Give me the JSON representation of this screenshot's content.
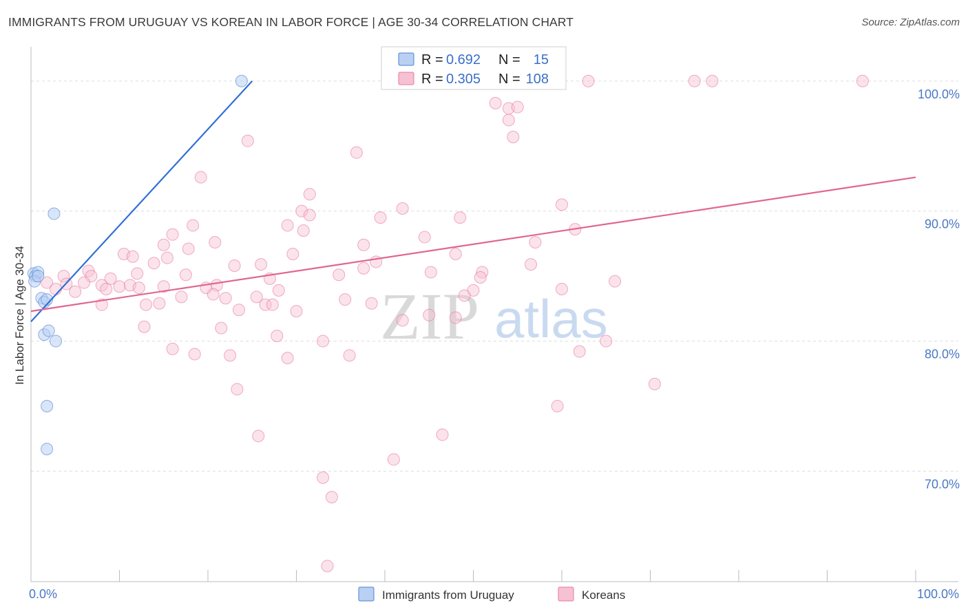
{
  "header": {
    "title": "IMMIGRANTS FROM URUGUAY VS KOREAN IN LABOR FORCE | AGE 30-34 CORRELATION CHART",
    "source": "Source: ZipAtlas.com"
  },
  "watermark": {
    "zip": "ZIP",
    "atlas": "atlas"
  },
  "colors": {
    "uruguay": "#4a7fd4",
    "uruguay_fill": "#b9d0f3",
    "koreans": "#e8769c",
    "koreans_fill": "#f6c1d2",
    "grid": "#dddddd",
    "tick_label": "#4a78c4"
  },
  "chart_data": {
    "type": "scatter",
    "title": "IMMIGRANTS FROM URUGUAY VS KOREAN IN LABOR FORCE | AGE 30-34 CORRELATION CHART",
    "xlabel": "",
    "ylabel": "In Labor Force | Age 30-34",
    "xlim": [
      0,
      100
    ],
    "ylim": [
      61.5,
      102
    ],
    "x_tick_labels": [
      {
        "value": 0,
        "label": "0.0%"
      },
      {
        "value": 100,
        "label": "100.0%"
      }
    ],
    "y_tick_labels": [
      {
        "value": 100,
        "label": "100.0%"
      },
      {
        "value": 90,
        "label": "90.0%"
      },
      {
        "value": 80,
        "label": "80.0%"
      },
      {
        "value": 70,
        "label": "70.0%"
      }
    ],
    "grid": true,
    "legend_position": "bottom-center",
    "stats": [
      {
        "r_label": "R =",
        "r": "0.692",
        "n_label": "N =",
        "n": "15"
      },
      {
        "r_label": "R =",
        "r": "0.305",
        "n_label": "N =",
        "n": "108"
      }
    ],
    "series": [
      {
        "name": "Immigrants from Uruguay",
        "color": "#4a7fd4",
        "trend": {
          "x0": 0,
          "y0": 81.5,
          "x1": 25,
          "y1": 100
        },
        "points": [
          [
            0.3,
            85.2
          ],
          [
            0.5,
            85.0
          ],
          [
            0.8,
            85.3
          ],
          [
            0.4,
            84.6
          ],
          [
            1.2,
            83.3
          ],
          [
            1.5,
            83.0
          ],
          [
            1.8,
            83.2
          ],
          [
            1.5,
            80.5
          ],
          [
            2.0,
            80.8
          ],
          [
            2.8,
            80.0
          ],
          [
            2.6,
            89.8
          ],
          [
            1.8,
            75.0
          ],
          [
            1.8,
            71.7
          ],
          [
            23.8,
            100.0
          ],
          [
            0.8,
            85.0
          ]
        ]
      },
      {
        "name": "Koreans",
        "color": "#e8769c",
        "trend": {
          "x0": 0,
          "y0": 82.3,
          "x1": 100,
          "y1": 92.6
        },
        "points": [
          [
            40.5,
            100.0
          ],
          [
            56.0,
            100.0
          ],
          [
            63.0,
            100.0
          ],
          [
            75.0,
            100.0
          ],
          [
            77.0,
            100.0
          ],
          [
            94.0,
            100.0
          ],
          [
            52.5,
            98.3
          ],
          [
            54.0,
            97.9
          ],
          [
            54.0,
            97.0
          ],
          [
            54.5,
            95.7
          ],
          [
            24.5,
            95.4
          ],
          [
            36.8,
            94.5
          ],
          [
            19.2,
            92.6
          ],
          [
            31.5,
            91.3
          ],
          [
            30.6,
            90.0
          ],
          [
            42.0,
            90.2
          ],
          [
            60.0,
            90.5
          ],
          [
            31.5,
            89.7
          ],
          [
            39.5,
            89.5
          ],
          [
            29.0,
            88.9
          ],
          [
            30.8,
            88.5
          ],
          [
            18.3,
            88.9
          ],
          [
            16.0,
            88.2
          ],
          [
            44.5,
            88.0
          ],
          [
            20.8,
            87.6
          ],
          [
            15.0,
            87.4
          ],
          [
            37.6,
            87.4
          ],
          [
            57.0,
            87.6
          ],
          [
            61.5,
            88.6
          ],
          [
            17.8,
            87.1
          ],
          [
            10.5,
            86.7
          ],
          [
            11.5,
            86.5
          ],
          [
            15.4,
            86.4
          ],
          [
            29.6,
            86.7
          ],
          [
            48.0,
            86.7
          ],
          [
            13.9,
            86.0
          ],
          [
            23.0,
            85.8
          ],
          [
            26.0,
            85.9
          ],
          [
            39.0,
            86.1
          ],
          [
            37.6,
            85.6
          ],
          [
            56.5,
            85.9
          ],
          [
            6.5,
            85.4
          ],
          [
            12.0,
            85.2
          ],
          [
            17.5,
            85.1
          ],
          [
            34.8,
            85.1
          ],
          [
            45.2,
            85.3
          ],
          [
            51.0,
            85.3
          ],
          [
            3.7,
            85.0
          ],
          [
            6.8,
            85.0
          ],
          [
            9.0,
            84.8
          ],
          [
            27.0,
            84.8
          ],
          [
            50.8,
            84.9
          ],
          [
            66.0,
            84.6
          ],
          [
            1.8,
            84.5
          ],
          [
            4.0,
            84.4
          ],
          [
            6.0,
            84.5
          ],
          [
            8.0,
            84.3
          ],
          [
            10.0,
            84.2
          ],
          [
            11.2,
            84.3
          ],
          [
            15.0,
            84.2
          ],
          [
            19.8,
            84.1
          ],
          [
            21.0,
            84.3
          ],
          [
            2.8,
            84.0
          ],
          [
            5.0,
            83.8
          ],
          [
            8.5,
            84.0
          ],
          [
            12.2,
            84.1
          ],
          [
            20.6,
            83.6
          ],
          [
            28.0,
            83.9
          ],
          [
            17.0,
            83.4
          ],
          [
            22.0,
            83.3
          ],
          [
            25.5,
            83.4
          ],
          [
            35.5,
            83.2
          ],
          [
            50.0,
            83.9
          ],
          [
            49.0,
            83.5
          ],
          [
            8.0,
            82.8
          ],
          [
            13.0,
            82.8
          ],
          [
            14.5,
            82.9
          ],
          [
            23.5,
            82.4
          ],
          [
            26.5,
            82.8
          ],
          [
            27.3,
            82.8
          ],
          [
            30.0,
            82.3
          ],
          [
            38.5,
            82.9
          ],
          [
            48.0,
            81.8
          ],
          [
            42.0,
            81.6
          ],
          [
            21.5,
            81.0
          ],
          [
            12.8,
            81.1
          ],
          [
            27.8,
            80.4
          ],
          [
            18.5,
            79.0
          ],
          [
            16.0,
            79.4
          ],
          [
            22.5,
            78.9
          ],
          [
            29.0,
            78.7
          ],
          [
            36.0,
            78.9
          ],
          [
            62.0,
            79.2
          ],
          [
            70.5,
            76.7
          ],
          [
            23.3,
            76.3
          ],
          [
            59.5,
            75.0
          ],
          [
            25.7,
            72.7
          ],
          [
            46.5,
            72.8
          ],
          [
            41.0,
            70.9
          ],
          [
            33.0,
            69.5
          ],
          [
            34.0,
            68.0
          ],
          [
            33.5,
            62.7
          ],
          [
            55.0,
            98.0
          ],
          [
            48.5,
            89.5
          ],
          [
            65.0,
            80.0
          ],
          [
            60.0,
            84.0
          ],
          [
            45.0,
            82.0
          ],
          [
            33.0,
            80.0
          ]
        ]
      }
    ]
  },
  "legend": {
    "items": [
      {
        "label": "Immigrants from Uruguay"
      },
      {
        "label": "Koreans"
      }
    ]
  }
}
